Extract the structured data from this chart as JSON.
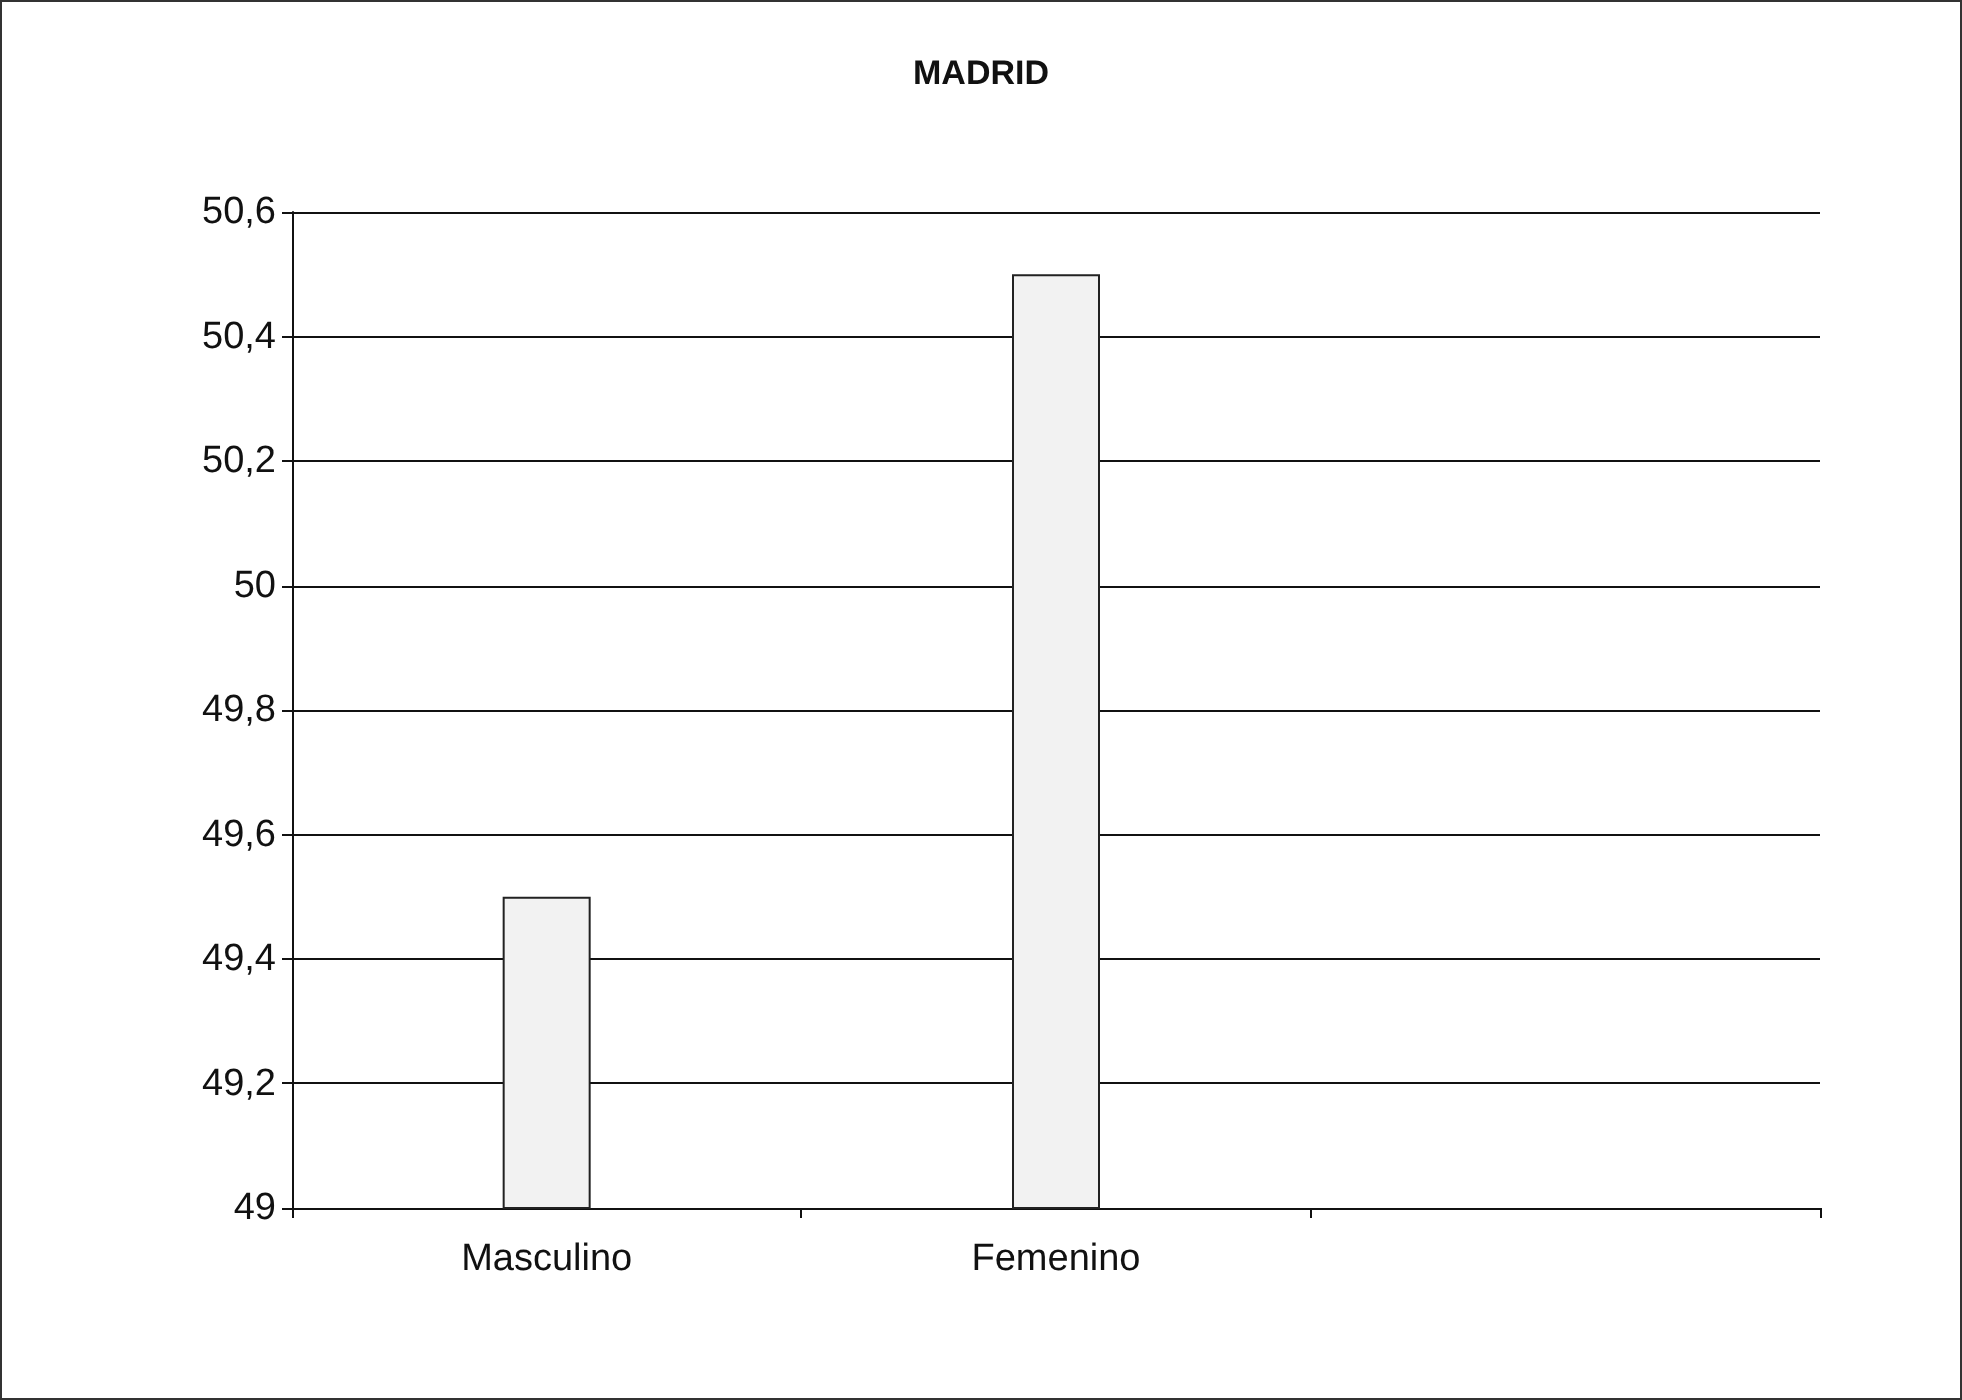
{
  "chart_data": {
    "type": "bar",
    "title": "MADRID",
    "categories": [
      "Masculino",
      "Femenino",
      null
    ],
    "values": [
      49.5,
      50.5,
      null
    ],
    "color": "#f2f2f2",
    "ylim": [
      49,
      50.6
    ],
    "yticks": [
      49,
      {
        "value": 49.2,
        "label": "49,2"
      },
      {
        "value": 49.4,
        "label": "49,4"
      },
      {
        "value": 49.6,
        "label": "49,6"
      },
      {
        "value": 49.8,
        "label": "49,8"
      },
      50,
      {
        "value": 50.2,
        "label": "50,2"
      },
      {
        "value": 50.4,
        "label": "50,4"
      },
      {
        "value": 50.6,
        "label": "50,6"
      }
    ],
    "grid": "y"
  }
}
